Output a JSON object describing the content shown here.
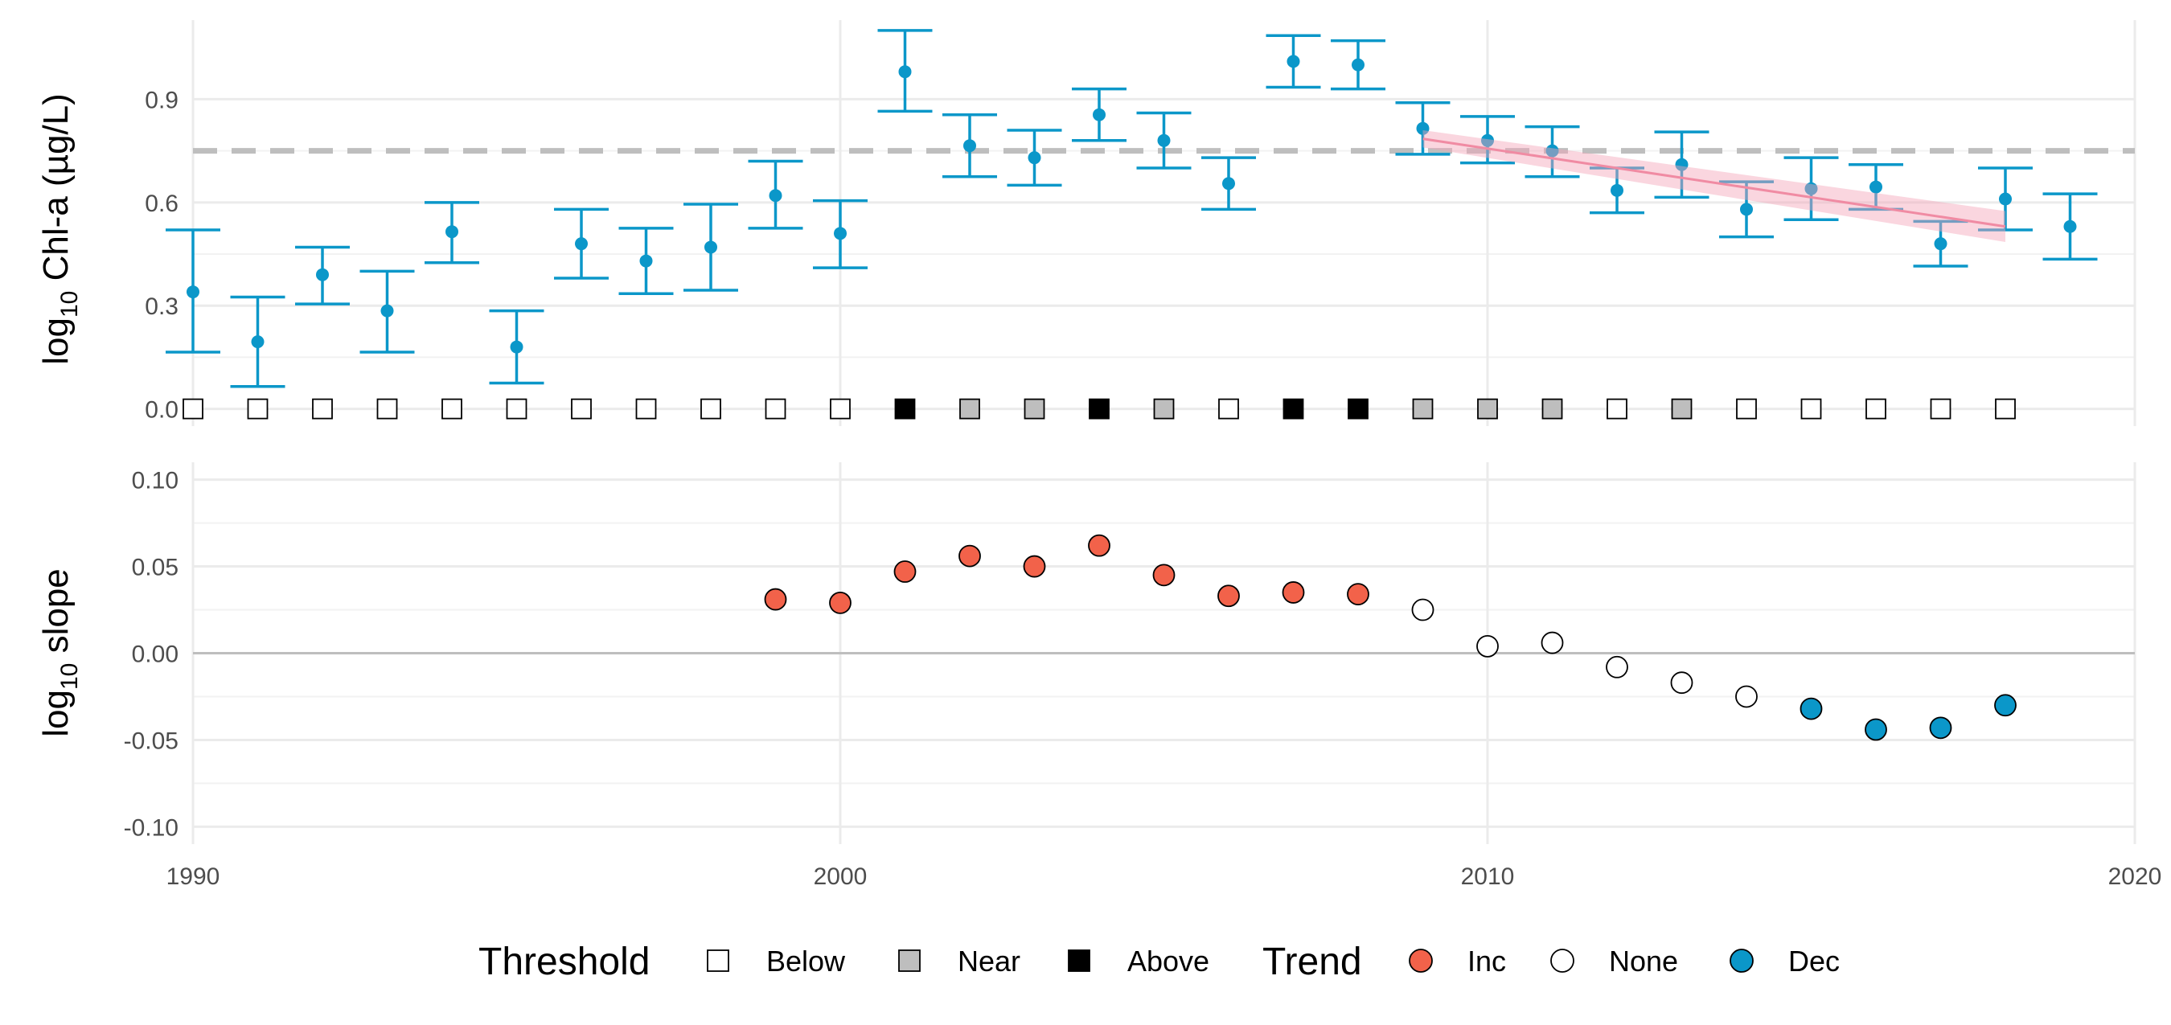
{
  "chart_data": [
    {
      "type": "scatter",
      "panel": "top",
      "ylabel_prefix": "log",
      "ylabel_sub": "10",
      "ylabel_rest": " Chl-a (µg/L)",
      "xlim": [
        1990,
        2020
      ],
      "ylim": [
        -0.05,
        1.13
      ],
      "yticks": [
        0.0,
        0.3,
        0.6,
        0.9
      ],
      "ytick_labels": [
        "0.0",
        "0.3",
        "0.6",
        "0.9"
      ],
      "threshold_line": 0.75,
      "grid": true,
      "series": [
        {
          "kind": "mean_with_ci",
          "color": "#0B97C9",
          "points": [
            {
              "x": 1990,
              "y": 0.34,
              "lo": 0.165,
              "hi": 0.52
            },
            {
              "x": 1991,
              "y": 0.195,
              "lo": 0.065,
              "hi": 0.325
            },
            {
              "x": 1992,
              "y": 0.39,
              "lo": 0.305,
              "hi": 0.47
            },
            {
              "x": 1993,
              "y": 0.285,
              "lo": 0.165,
              "hi": 0.4
            },
            {
              "x": 1994,
              "y": 0.515,
              "lo": 0.425,
              "hi": 0.6
            },
            {
              "x": 1995,
              "y": 0.18,
              "lo": 0.075,
              "hi": 0.285
            },
            {
              "x": 1996,
              "y": 0.48,
              "lo": 0.38,
              "hi": 0.58
            },
            {
              "x": 1997,
              "y": 0.43,
              "lo": 0.335,
              "hi": 0.525
            },
            {
              "x": 1998,
              "y": 0.47,
              "lo": 0.345,
              "hi": 0.595
            },
            {
              "x": 1999,
              "y": 0.62,
              "lo": 0.525,
              "hi": 0.72
            },
            {
              "x": 2000,
              "y": 0.51,
              "lo": 0.41,
              "hi": 0.605
            },
            {
              "x": 2001,
              "y": 0.98,
              "lo": 0.865,
              "hi": 1.1
            },
            {
              "x": 2002,
              "y": 0.765,
              "lo": 0.675,
              "hi": 0.855
            },
            {
              "x": 2003,
              "y": 0.73,
              "lo": 0.65,
              "hi": 0.81
            },
            {
              "x": 2004,
              "y": 0.855,
              "lo": 0.78,
              "hi": 0.93
            },
            {
              "x": 2005,
              "y": 0.78,
              "lo": 0.7,
              "hi": 0.86
            },
            {
              "x": 2006,
              "y": 0.655,
              "lo": 0.58,
              "hi": 0.73
            },
            {
              "x": 2007,
              "y": 1.01,
              "lo": 0.935,
              "hi": 1.085
            },
            {
              "x": 2008,
              "y": 1.0,
              "lo": 0.93,
              "hi": 1.07
            },
            {
              "x": 2009,
              "y": 0.815,
              "lo": 0.74,
              "hi": 0.89
            },
            {
              "x": 2010,
              "y": 0.78,
              "lo": 0.715,
              "hi": 0.85
            },
            {
              "x": 2011,
              "y": 0.75,
              "lo": 0.675,
              "hi": 0.82
            },
            {
              "x": 2012,
              "y": 0.635,
              "lo": 0.57,
              "hi": 0.7
            },
            {
              "x": 2013,
              "y": 0.71,
              "lo": 0.615,
              "hi": 0.805
            },
            {
              "x": 2014,
              "y": 0.58,
              "lo": 0.5,
              "hi": 0.66
            },
            {
              "x": 2015,
              "y": 0.64,
              "lo": 0.55,
              "hi": 0.73
            },
            {
              "x": 2016,
              "y": 0.645,
              "lo": 0.58,
              "hi": 0.71
            },
            {
              "x": 2017,
              "y": 0.48,
              "lo": 0.415,
              "hi": 0.545
            },
            {
              "x": 2018,
              "y": 0.61,
              "lo": 0.52,
              "hi": 0.7
            },
            {
              "x": 2019,
              "y": 0.53,
              "lo": 0.435,
              "hi": 0.625
            }
          ]
        },
        {
          "kind": "trend_band",
          "color": "#F4A3B7",
          "x": [
            2009,
            2018
          ],
          "y": [
            0.785,
            0.53
          ],
          "lo": [
            0.76,
            0.485
          ],
          "hi": [
            0.81,
            0.575
          ]
        },
        {
          "kind": "threshold_markers",
          "y": 0.0,
          "colors": {
            "Below": "#FFFFFF",
            "Near": "#BEBEBE",
            "Above": "#000000"
          },
          "points": [
            {
              "x": 1990,
              "cat": "Below"
            },
            {
              "x": 1991,
              "cat": "Below"
            },
            {
              "x": 1992,
              "cat": "Below"
            },
            {
              "x": 1993,
              "cat": "Below"
            },
            {
              "x": 1994,
              "cat": "Below"
            },
            {
              "x": 1995,
              "cat": "Below"
            },
            {
              "x": 1996,
              "cat": "Below"
            },
            {
              "x": 1997,
              "cat": "Below"
            },
            {
              "x": 1998,
              "cat": "Below"
            },
            {
              "x": 1999,
              "cat": "Below"
            },
            {
              "x": 2000,
              "cat": "Below"
            },
            {
              "x": 2001,
              "cat": "Above"
            },
            {
              "x": 2002,
              "cat": "Near"
            },
            {
              "x": 2003,
              "cat": "Near"
            },
            {
              "x": 2004,
              "cat": "Above"
            },
            {
              "x": 2005,
              "cat": "Near"
            },
            {
              "x": 2006,
              "cat": "Below"
            },
            {
              "x": 2007,
              "cat": "Above"
            },
            {
              "x": 2008,
              "cat": "Above"
            },
            {
              "x": 2009,
              "cat": "Near"
            },
            {
              "x": 2010,
              "cat": "Near"
            },
            {
              "x": 2011,
              "cat": "Near"
            },
            {
              "x": 2012,
              "cat": "Below"
            },
            {
              "x": 2013,
              "cat": "Near"
            },
            {
              "x": 2014,
              "cat": "Below"
            },
            {
              "x": 2015,
              "cat": "Below"
            },
            {
              "x": 2016,
              "cat": "Below"
            },
            {
              "x": 2017,
              "cat": "Below"
            },
            {
              "x": 2018,
              "cat": "Below"
            }
          ]
        }
      ]
    },
    {
      "type": "scatter",
      "panel": "bottom",
      "ylabel_prefix": "log",
      "ylabel_sub": "10",
      "ylabel_rest": " slope",
      "xlim": [
        1990,
        2020
      ],
      "ylim": [
        -0.11,
        0.11
      ],
      "yticks": [
        -0.1,
        -0.05,
        0.0,
        0.05,
        0.1
      ],
      "ytick_labels": [
        "-0.10",
        "-0.05",
        "0.00",
        "0.05",
        "0.10"
      ],
      "xticks": [
        1990,
        2000,
        2010,
        2020
      ],
      "xtick_labels": [
        "1990",
        "2000",
        "2010",
        "2020"
      ],
      "zero_line": 0.0,
      "grid": true,
      "colors": {
        "Inc": "#F2624A",
        "None": "#FFFFFF",
        "Dec": "#0B97C9"
      },
      "points": [
        {
          "x": 1999,
          "y": 0.031,
          "trend": "Inc"
        },
        {
          "x": 2000,
          "y": 0.029,
          "trend": "Inc"
        },
        {
          "x": 2001,
          "y": 0.047,
          "trend": "Inc"
        },
        {
          "x": 2002,
          "y": 0.056,
          "trend": "Inc"
        },
        {
          "x": 2003,
          "y": 0.05,
          "trend": "Inc"
        },
        {
          "x": 2004,
          "y": 0.062,
          "trend": "Inc"
        },
        {
          "x": 2005,
          "y": 0.045,
          "trend": "Inc"
        },
        {
          "x": 2006,
          "y": 0.033,
          "trend": "Inc"
        },
        {
          "x": 2007,
          "y": 0.035,
          "trend": "Inc"
        },
        {
          "x": 2008,
          "y": 0.034,
          "trend": "Inc"
        },
        {
          "x": 2009,
          "y": 0.025,
          "trend": "None"
        },
        {
          "x": 2010,
          "y": 0.004,
          "trend": "None"
        },
        {
          "x": 2011,
          "y": 0.006,
          "trend": "None"
        },
        {
          "x": 2012,
          "y": -0.008,
          "trend": "None"
        },
        {
          "x": 2013,
          "y": -0.017,
          "trend": "None"
        },
        {
          "x": 2014,
          "y": -0.025,
          "trend": "None"
        },
        {
          "x": 2015,
          "y": -0.032,
          "trend": "Dec"
        },
        {
          "x": 2016,
          "y": -0.044,
          "trend": "Dec"
        },
        {
          "x": 2017,
          "y": -0.043,
          "trend": "Dec"
        },
        {
          "x": 2018,
          "y": -0.03,
          "trend": "Dec"
        }
      ]
    }
  ],
  "legend": {
    "placement": "bottom",
    "threshold_title": "Threshold",
    "threshold_items": [
      {
        "label": "Below",
        "fill": "#FFFFFF"
      },
      {
        "label": "Near",
        "fill": "#BEBEBE"
      },
      {
        "label": "Above",
        "fill": "#000000"
      }
    ],
    "trend_title": "Trend",
    "trend_items": [
      {
        "label": "Inc",
        "fill": "#F2624A"
      },
      {
        "label": "None",
        "fill": "#FFFFFF"
      },
      {
        "label": "Dec",
        "fill": "#0B97C9"
      }
    ]
  }
}
